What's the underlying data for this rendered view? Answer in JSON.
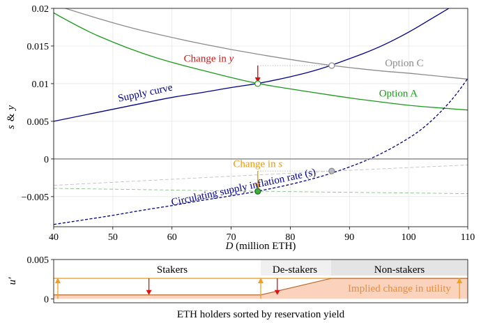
{
  "chart_data": [
    {
      "type": "line",
      "xlabel": "D (million ETH)",
      "xlabel_var": "D",
      "xlabel_unit": " (million ETH)",
      "ylabel": "s & y",
      "ylabel_parts": [
        "s",
        "&",
        "y"
      ],
      "xlim": [
        40,
        110
      ],
      "ylim": [
        -0.009,
        0.02
      ],
      "x_ticks": [
        40,
        50,
        60,
        70,
        80,
        90,
        100,
        110
      ],
      "x_tick_labels": [
        "40",
        "50",
        "60",
        "70",
        "80",
        "90",
        "100",
        "110"
      ],
      "y_ticks": [
        -0.005,
        0,
        0.005,
        0.01,
        0.015,
        0.02
      ],
      "y_tick_labels": [
        "−0.005",
        "0",
        "0.005",
        "0.01",
        "0.015",
        "0.02"
      ],
      "grid": true,
      "series": [
        {
          "name": "Supply curve",
          "color": "#00008b",
          "style": "solid",
          "x": [
            40,
            45,
            50,
            55,
            60,
            65,
            70,
            74.5,
            80,
            85,
            90,
            95,
            100,
            104,
            106.8
          ],
          "values": [
            0.005,
            0.0058,
            0.0066,
            0.0074,
            0.0082,
            0.0088,
            0.0095,
            0.01,
            0.0109,
            0.0119,
            0.0133,
            0.0148,
            0.0168,
            0.0187,
            0.02
          ]
        },
        {
          "name": "Option A",
          "color": "#1a9a1a",
          "style": "solid",
          "x": [
            40,
            45,
            50,
            55,
            60,
            65,
            70,
            74.5,
            80,
            85,
            90,
            95,
            100,
            105,
            110
          ],
          "values": [
            0.0194,
            0.0172,
            0.0155,
            0.014,
            0.0128,
            0.0118,
            0.0108,
            0.01,
            0.0093,
            0.0087,
            0.0081,
            0.0076,
            0.0071,
            0.0068,
            0.0065
          ]
        },
        {
          "name": "Option C",
          "color": "#8c8c8c",
          "style": "solid",
          "x": [
            42,
            50,
            60,
            70,
            80,
            87,
            95,
            100,
            105,
            110
          ],
          "values": [
            0.02,
            0.018,
            0.0161,
            0.0145,
            0.0132,
            0.0124,
            0.0117,
            0.0114,
            0.011,
            0.0106
          ]
        },
        {
          "name": "Circulating supply inflation rate (s)",
          "color": "#00008b",
          "style": "dashed",
          "x": [
            40,
            45,
            50,
            55,
            60,
            65,
            70,
            74.5,
            80,
            85,
            90,
            95,
            100,
            103,
            106,
            108,
            110
          ],
          "values": [
            -0.0087,
            -0.0081,
            -0.0075,
            -0.0068,
            -0.0062,
            -0.0055,
            -0.0049,
            -0.0043,
            -0.0034,
            -0.0024,
            -0.0011,
            0.0005,
            0.0027,
            0.0044,
            0.0067,
            0.0085,
            0.0107
          ]
        },
        {
          "name": "Option A counterpart (s)",
          "color": "#1a9a1a",
          "style": "light-dashed",
          "x": [
            40,
            74.5,
            110
          ],
          "values": [
            -0.0039,
            -0.0043,
            -0.0046
          ]
        },
        {
          "name": "Option C counterpart (s)",
          "color": "#8c8c8c",
          "style": "light-dashed",
          "x": [
            40,
            87,
            110
          ],
          "values": [
            -0.0035,
            -0.0016,
            -0.0008
          ]
        },
        {
          "name": "Zero line",
          "color": "#777777",
          "style": "solid",
          "x": [
            40,
            110
          ],
          "values": [
            0,
            0
          ]
        }
      ],
      "points": [
        {
          "name": "Equilibrium A (y)",
          "x": 74.5,
          "y": 0.01,
          "fill": "#ffffff",
          "stroke": "#1a9a1a"
        },
        {
          "name": "Equilibrium C (y)",
          "x": 87,
          "y": 0.0124,
          "fill": "#ffffff",
          "stroke": "#8c8c8c"
        },
        {
          "name": "Equilibrium A (s)",
          "x": 74.5,
          "y": -0.0043,
          "fill": "#3fae3f",
          "stroke": "#1a6a1a"
        },
        {
          "name": "Equilibrium C (s)",
          "x": 87,
          "y": -0.0016,
          "fill": "#b8b8c8",
          "stroke": "#8c8c8c"
        }
      ],
      "annotations": [
        {
          "text": "Option C",
          "color": "#8c8c8c",
          "x": 96,
          "y": 0.0123
        },
        {
          "text": "Option A",
          "color": "#1a9a1a",
          "x": 95,
          "y": 0.0083
        },
        {
          "text": "Supply curve",
          "color": "#00008b",
          "x": 51,
          "y": 0.0076,
          "rotate": -12
        },
        {
          "text": "Circulating supply inflation rate (s)",
          "color": "#00008b",
          "x": 60,
          "y": -0.0062,
          "rotate": -12
        },
        {
          "text": "Change in y",
          "text_prefix": "Change in ",
          "var": "y",
          "color": "#dd1111",
          "x": 62,
          "y": 0.0129
        },
        {
          "text": "Change in s",
          "text_prefix": "Change in ",
          "var": "s",
          "color": "#ee9900",
          "x": 74.5,
          "y": -0.0011
        }
      ],
      "change_arrows": [
        {
          "name": "Change in y",
          "color": "#dd1111",
          "x": 74.5,
          "from": 0.0124,
          "to": 0.0101
        },
        {
          "name": "Change in s",
          "color": "#ee9900",
          "x": 74.5,
          "from": -0.0016,
          "to": -0.0041
        }
      ]
    },
    {
      "type": "area",
      "xlabel": "ETH holders sorted by reservation yield",
      "ylabel": "u′",
      "ylim": [
        -0.0005,
        0.005
      ],
      "y_ticks": [
        0,
        0.005
      ],
      "y_tick_labels": [
        "0",
        "0.005"
      ],
      "utility_before": 0.0026,
      "utility_after_stakers": 0.0005,
      "utility_after_nonstakers": 0.0026,
      "regions": [
        {
          "label": "Stakers",
          "share": [
            0,
            0.5
          ],
          "shade": "#ffffff"
        },
        {
          "label": "De-stakers",
          "share": [
            0.5,
            0.67
          ],
          "shade": "#f0f0f0"
        },
        {
          "label": "Non-stakers",
          "share": [
            0.67,
            1.0
          ],
          "shade": "#e4e4e4"
        }
      ],
      "fill_label": "Implied change in utility",
      "fill_color": "#fbd3bd",
      "line_color": "#f0a020",
      "boundary_color": "#b86a30",
      "up_arrows_share": [
        0.01,
        0.5,
        0.98
      ],
      "down_arrows_share": [
        0.23,
        0.54
      ]
    }
  ]
}
